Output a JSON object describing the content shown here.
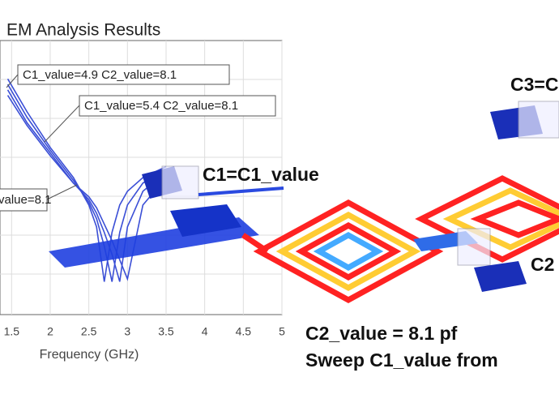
{
  "chart_data": {
    "type": "line",
    "title": "EM Analysis Results",
    "xlabel": "Frequency (GHz)",
    "x": [
      1.45,
      1.7,
      2.0,
      2.3,
      2.5,
      2.6,
      2.7,
      2.8,
      2.9,
      3.0,
      3.2,
      3.5
    ],
    "xlim": [
      1.35,
      5
    ],
    "xticks": [
      1.5,
      2,
      2.5,
      3,
      3.5,
      4,
      4.5,
      5
    ],
    "ylim": [
      0,
      100
    ],
    "grid": true,
    "series": [
      {
        "color": "#3b4fd6",
        "values": [
          86,
          74,
          61,
          50,
          40,
          32,
          12,
          30,
          40,
          45,
          50,
          54
        ]
      },
      {
        "color": "#3b4fd6",
        "values": [
          84,
          72,
          60,
          49,
          41,
          35,
          25,
          12,
          30,
          40,
          48,
          53
        ]
      },
      {
        "color": "#3b4fd6",
        "values": [
          82,
          70,
          59,
          48,
          42,
          37,
          30,
          22,
          12,
          32,
          45,
          52
        ]
      },
      {
        "color": "#3b4fd6",
        "values": [
          80,
          69,
          58,
          48,
          43,
          39,
          33,
          27,
          20,
          13,
          40,
          50
        ]
      }
    ],
    "annotations": [
      "C1_value=4.9 C2_value=8.1",
      "C1_value=5.4 C2_value=8.1",
      "value=8.1"
    ]
  },
  "labels": {
    "c1": "C1=C1_value",
    "c3": "C3=C",
    "c2": "C2",
    "c2_value": "C2_value = 8.1 pf",
    "sweep": "Sweep C1_value from"
  }
}
